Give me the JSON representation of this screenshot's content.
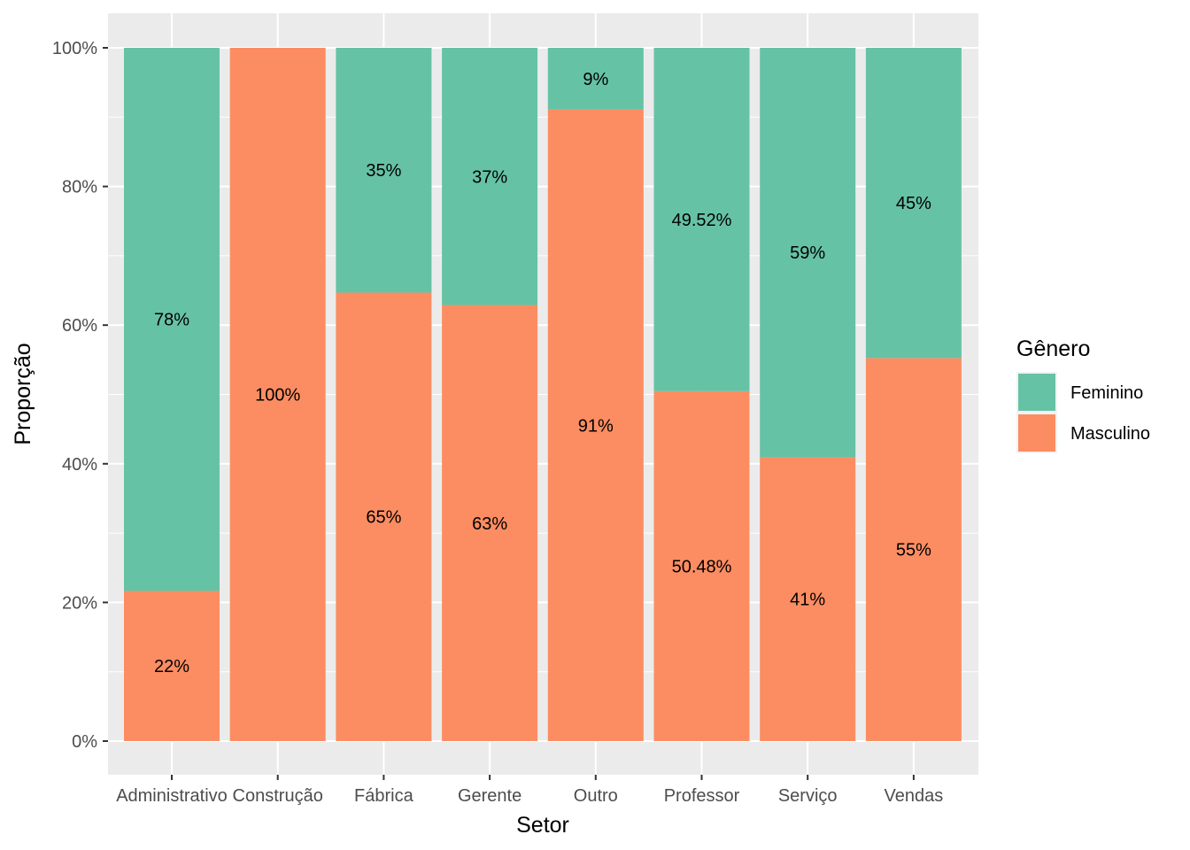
{
  "chart_data": {
    "type": "bar",
    "stacked": true,
    "normalized": true,
    "xlabel": "Setor",
    "ylabel": "Proporção",
    "ylim": [
      0,
      1
    ],
    "y_ticks": [
      "0%",
      "20%",
      "40%",
      "60%",
      "80%",
      "100%"
    ],
    "categories": [
      "Administrativo",
      "Construção",
      "Fábrica",
      "Gerente",
      "Outro",
      "Professor",
      "Serviço",
      "Vendas"
    ],
    "series": [
      {
        "name": "Masculino",
        "color": "#FC8D62",
        "values": [
          0.2165,
          1.0,
          0.6469,
          0.6289,
          0.9111,
          0.5048,
          0.4095,
          0.5525
        ],
        "labels": [
          "22%",
          "100%",
          "65%",
          "63%",
          "91%",
          "50.48%",
          "41%",
          "55%"
        ]
      },
      {
        "name": "Feminino",
        "color": "#66C2A5",
        "values": [
          0.7835,
          0.0,
          0.3531,
          0.3711,
          0.0889,
          0.4952,
          0.5905,
          0.4475
        ],
        "labels": [
          "78%",
          "",
          "35%",
          "37%",
          "9%",
          "49.52%",
          "59%",
          "45%"
        ]
      }
    ],
    "legend": {
      "title": "Gênero",
      "position": "right",
      "items": [
        "Feminino",
        "Masculino"
      ]
    },
    "grid": true,
    "background": "#EBEBEB"
  }
}
